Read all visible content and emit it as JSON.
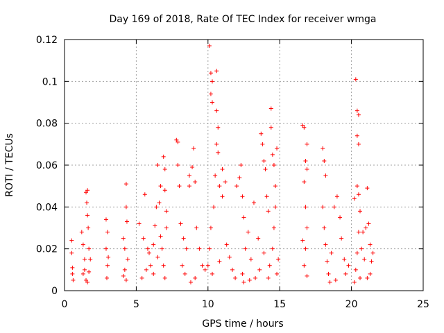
{
  "chart_data": {
    "type": "scatter",
    "title": "Day 169 of 2018, Rate Of TEC Index for receiver wmga",
    "xlabel": "GPS time / hours",
    "ylabel": "ROTI / TECUs",
    "xlim": [
      0,
      25
    ],
    "ylim": [
      0,
      0.12
    ],
    "xticks": [
      0,
      5,
      10,
      15,
      20,
      25
    ],
    "xtick_labels": [
      "0",
      "5",
      "10",
      "15",
      "20",
      "25"
    ],
    "yticks": [
      0,
      0.02,
      0.04,
      0.06,
      0.08,
      0.1,
      0.12
    ],
    "ytick_labels": [
      "0",
      "0.02",
      "0.04",
      "0.06",
      "0.08",
      "0.1",
      "0.12"
    ],
    "grid": true,
    "marker": "+",
    "color": "#ff0000",
    "series": [
      {
        "points": [
          [
            0.5,
            0.024
          ],
          [
            0.5,
            0.018
          ],
          [
            0.55,
            0.011
          ],
          [
            0.6,
            0.005
          ],
          [
            0.55,
            0.008
          ],
          [
            1.2,
            0.028
          ],
          [
            1.3,
            0.022
          ],
          [
            1.4,
            0.015
          ],
          [
            1.5,
            0.047
          ],
          [
            1.55,
            0.042
          ],
          [
            1.6,
            0.036
          ],
          [
            1.6,
            0.048
          ],
          [
            1.65,
            0.03
          ],
          [
            1.4,
            0.01
          ],
          [
            1.5,
            0.005
          ],
          [
            1.7,
            0.02
          ],
          [
            1.8,
            0.015
          ],
          [
            1.3,
            0.008
          ],
          [
            1.7,
            0.009
          ],
          [
            1.6,
            0.004
          ],
          [
            2.9,
            0.034
          ],
          [
            3.0,
            0.028
          ],
          [
            2.9,
            0.02
          ],
          [
            3.0,
            0.012
          ],
          [
            2.95,
            0.006
          ],
          [
            3.05,
            0.016
          ],
          [
            4.1,
            0.025
          ],
          [
            4.2,
            0.02
          ],
          [
            4.3,
            0.051
          ],
          [
            4.3,
            0.04
          ],
          [
            4.35,
            0.033
          ],
          [
            4.2,
            0.01
          ],
          [
            4.3,
            0.005
          ],
          [
            4.4,
            0.015
          ],
          [
            4.1,
            0.007
          ],
          [
            5.2,
            0.032
          ],
          [
            5.5,
            0.025
          ],
          [
            5.6,
            0.046
          ],
          [
            5.8,
            0.02
          ],
          [
            6.0,
            0.012
          ],
          [
            6.2,
            0.008
          ],
          [
            6.3,
            0.031
          ],
          [
            6.5,
            0.06
          ],
          [
            6.6,
            0.042
          ],
          [
            6.7,
            0.05
          ],
          [
            6.9,
            0.064
          ],
          [
            7.0,
            0.058
          ],
          [
            7.0,
            0.048
          ],
          [
            7.1,
            0.038
          ],
          [
            7.1,
            0.03
          ],
          [
            6.8,
            0.02
          ],
          [
            6.9,
            0.012
          ],
          [
            7.0,
            0.006
          ],
          [
            6.5,
            0.016
          ],
          [
            6.2,
            0.022
          ],
          [
            5.9,
            0.018
          ],
          [
            5.7,
            0.01
          ],
          [
            5.4,
            0.006
          ],
          [
            6.4,
            0.04
          ],
          [
            6.7,
            0.026
          ],
          [
            7.8,
            0.072
          ],
          [
            7.9,
            0.071
          ],
          [
            7.9,
            0.06
          ],
          [
            8.0,
            0.05
          ],
          [
            8.1,
            0.032
          ],
          [
            8.3,
            0.025
          ],
          [
            8.5,
            0.02
          ],
          [
            8.7,
            0.055
          ],
          [
            8.7,
            0.05
          ],
          [
            8.9,
            0.059
          ],
          [
            9.0,
            0.068
          ],
          [
            9.1,
            0.052
          ],
          [
            9.2,
            0.03
          ],
          [
            9.4,
            0.02
          ],
          [
            9.6,
            0.012
          ],
          [
            9.8,
            0.01
          ],
          [
            8.2,
            0.012
          ],
          [
            8.4,
            0.008
          ],
          [
            8.8,
            0.004
          ],
          [
            9.1,
            0.006
          ],
          [
            10.1,
            0.117
          ],
          [
            10.2,
            0.104
          ],
          [
            10.3,
            0.1
          ],
          [
            10.2,
            0.094
          ],
          [
            10.3,
            0.09
          ],
          [
            10.6,
            0.105
          ],
          [
            10.6,
            0.086
          ],
          [
            10.7,
            0.078
          ],
          [
            10.6,
            0.07
          ],
          [
            10.7,
            0.066
          ],
          [
            10.5,
            0.055
          ],
          [
            10.8,
            0.05
          ],
          [
            11.0,
            0.058
          ],
          [
            11.2,
            0.052
          ],
          [
            11.0,
            0.045
          ],
          [
            10.4,
            0.04
          ],
          [
            10.2,
            0.03
          ],
          [
            10.1,
            0.02
          ],
          [
            10.0,
            0.012
          ],
          [
            10.3,
            0.008
          ],
          [
            10.8,
            0.014
          ],
          [
            11.3,
            0.022
          ],
          [
            11.5,
            0.016
          ],
          [
            11.7,
            0.01
          ],
          [
            11.9,
            0.006
          ],
          [
            12.0,
            0.05
          ],
          [
            12.2,
            0.054
          ],
          [
            12.3,
            0.06
          ],
          [
            12.4,
            0.045
          ],
          [
            12.5,
            0.035
          ],
          [
            12.6,
            0.02
          ],
          [
            12.4,
            0.008
          ],
          [
            12.5,
            0.004
          ],
          [
            12.8,
            0.028
          ],
          [
            13.0,
            0.015
          ],
          [
            13.2,
            0.042
          ],
          [
            13.5,
            0.025
          ],
          [
            13.7,
            0.075
          ],
          [
            13.8,
            0.07
          ],
          [
            13.9,
            0.062
          ],
          [
            14.0,
            0.058
          ],
          [
            14.1,
            0.045
          ],
          [
            14.2,
            0.038
          ],
          [
            14.4,
            0.087
          ],
          [
            14.4,
            0.078
          ],
          [
            14.5,
            0.065
          ],
          [
            14.6,
            0.06
          ],
          [
            14.7,
            0.05
          ],
          [
            14.8,
            0.068
          ],
          [
            14.7,
            0.04
          ],
          [
            14.6,
            0.03
          ],
          [
            14.5,
            0.02
          ],
          [
            14.3,
            0.012
          ],
          [
            14.2,
            0.006
          ],
          [
            13.6,
            0.01
          ],
          [
            13.3,
            0.006
          ],
          [
            12.9,
            0.005
          ],
          [
            14.9,
            0.015
          ],
          [
            14.8,
            0.008
          ],
          [
            13.9,
            0.018
          ],
          [
            16.6,
            0.079
          ],
          [
            16.7,
            0.078
          ],
          [
            16.9,
            0.07
          ],
          [
            16.8,
            0.062
          ],
          [
            16.9,
            0.058
          ],
          [
            16.7,
            0.052
          ],
          [
            16.8,
            0.04
          ],
          [
            16.9,
            0.03
          ],
          [
            16.8,
            0.02
          ],
          [
            16.7,
            0.012
          ],
          [
            16.9,
            0.007
          ],
          [
            16.6,
            0.024
          ],
          [
            18.0,
            0.068
          ],
          [
            18.1,
            0.062
          ],
          [
            18.2,
            0.055
          ],
          [
            18.0,
            0.04
          ],
          [
            18.1,
            0.03
          ],
          [
            18.2,
            0.022
          ],
          [
            18.3,
            0.014
          ],
          [
            18.4,
            0.008
          ],
          [
            18.6,
            0.018
          ],
          [
            18.8,
            0.04
          ],
          [
            19.0,
            0.045
          ],
          [
            19.2,
            0.035
          ],
          [
            19.3,
            0.025
          ],
          [
            19.5,
            0.015
          ],
          [
            19.6,
            0.008
          ],
          [
            18.9,
            0.005
          ],
          [
            18.5,
            0.004
          ],
          [
            19.8,
            0.012
          ],
          [
            20.3,
            0.101
          ],
          [
            20.4,
            0.086
          ],
          [
            20.5,
            0.084
          ],
          [
            20.4,
            0.074
          ],
          [
            20.5,
            0.07
          ],
          [
            20.2,
            0.044
          ],
          [
            20.4,
            0.05
          ],
          [
            20.5,
            0.046
          ],
          [
            20.6,
            0.038
          ],
          [
            20.5,
            0.028
          ],
          [
            20.4,
            0.018
          ],
          [
            20.3,
            0.01
          ],
          [
            20.6,
            0.006
          ],
          [
            20.2,
            0.004
          ],
          [
            20.7,
            0.02
          ],
          [
            20.9,
            0.015
          ],
          [
            21.0,
            0.03
          ],
          [
            21.1,
            0.049
          ],
          [
            21.2,
            0.032
          ],
          [
            21.3,
            0.022
          ],
          [
            21.4,
            0.014
          ],
          [
            21.3,
            0.008
          ],
          [
            21.1,
            0.006
          ],
          [
            21.5,
            0.018
          ],
          [
            20.8,
            0.028
          ]
        ]
      }
    ]
  }
}
